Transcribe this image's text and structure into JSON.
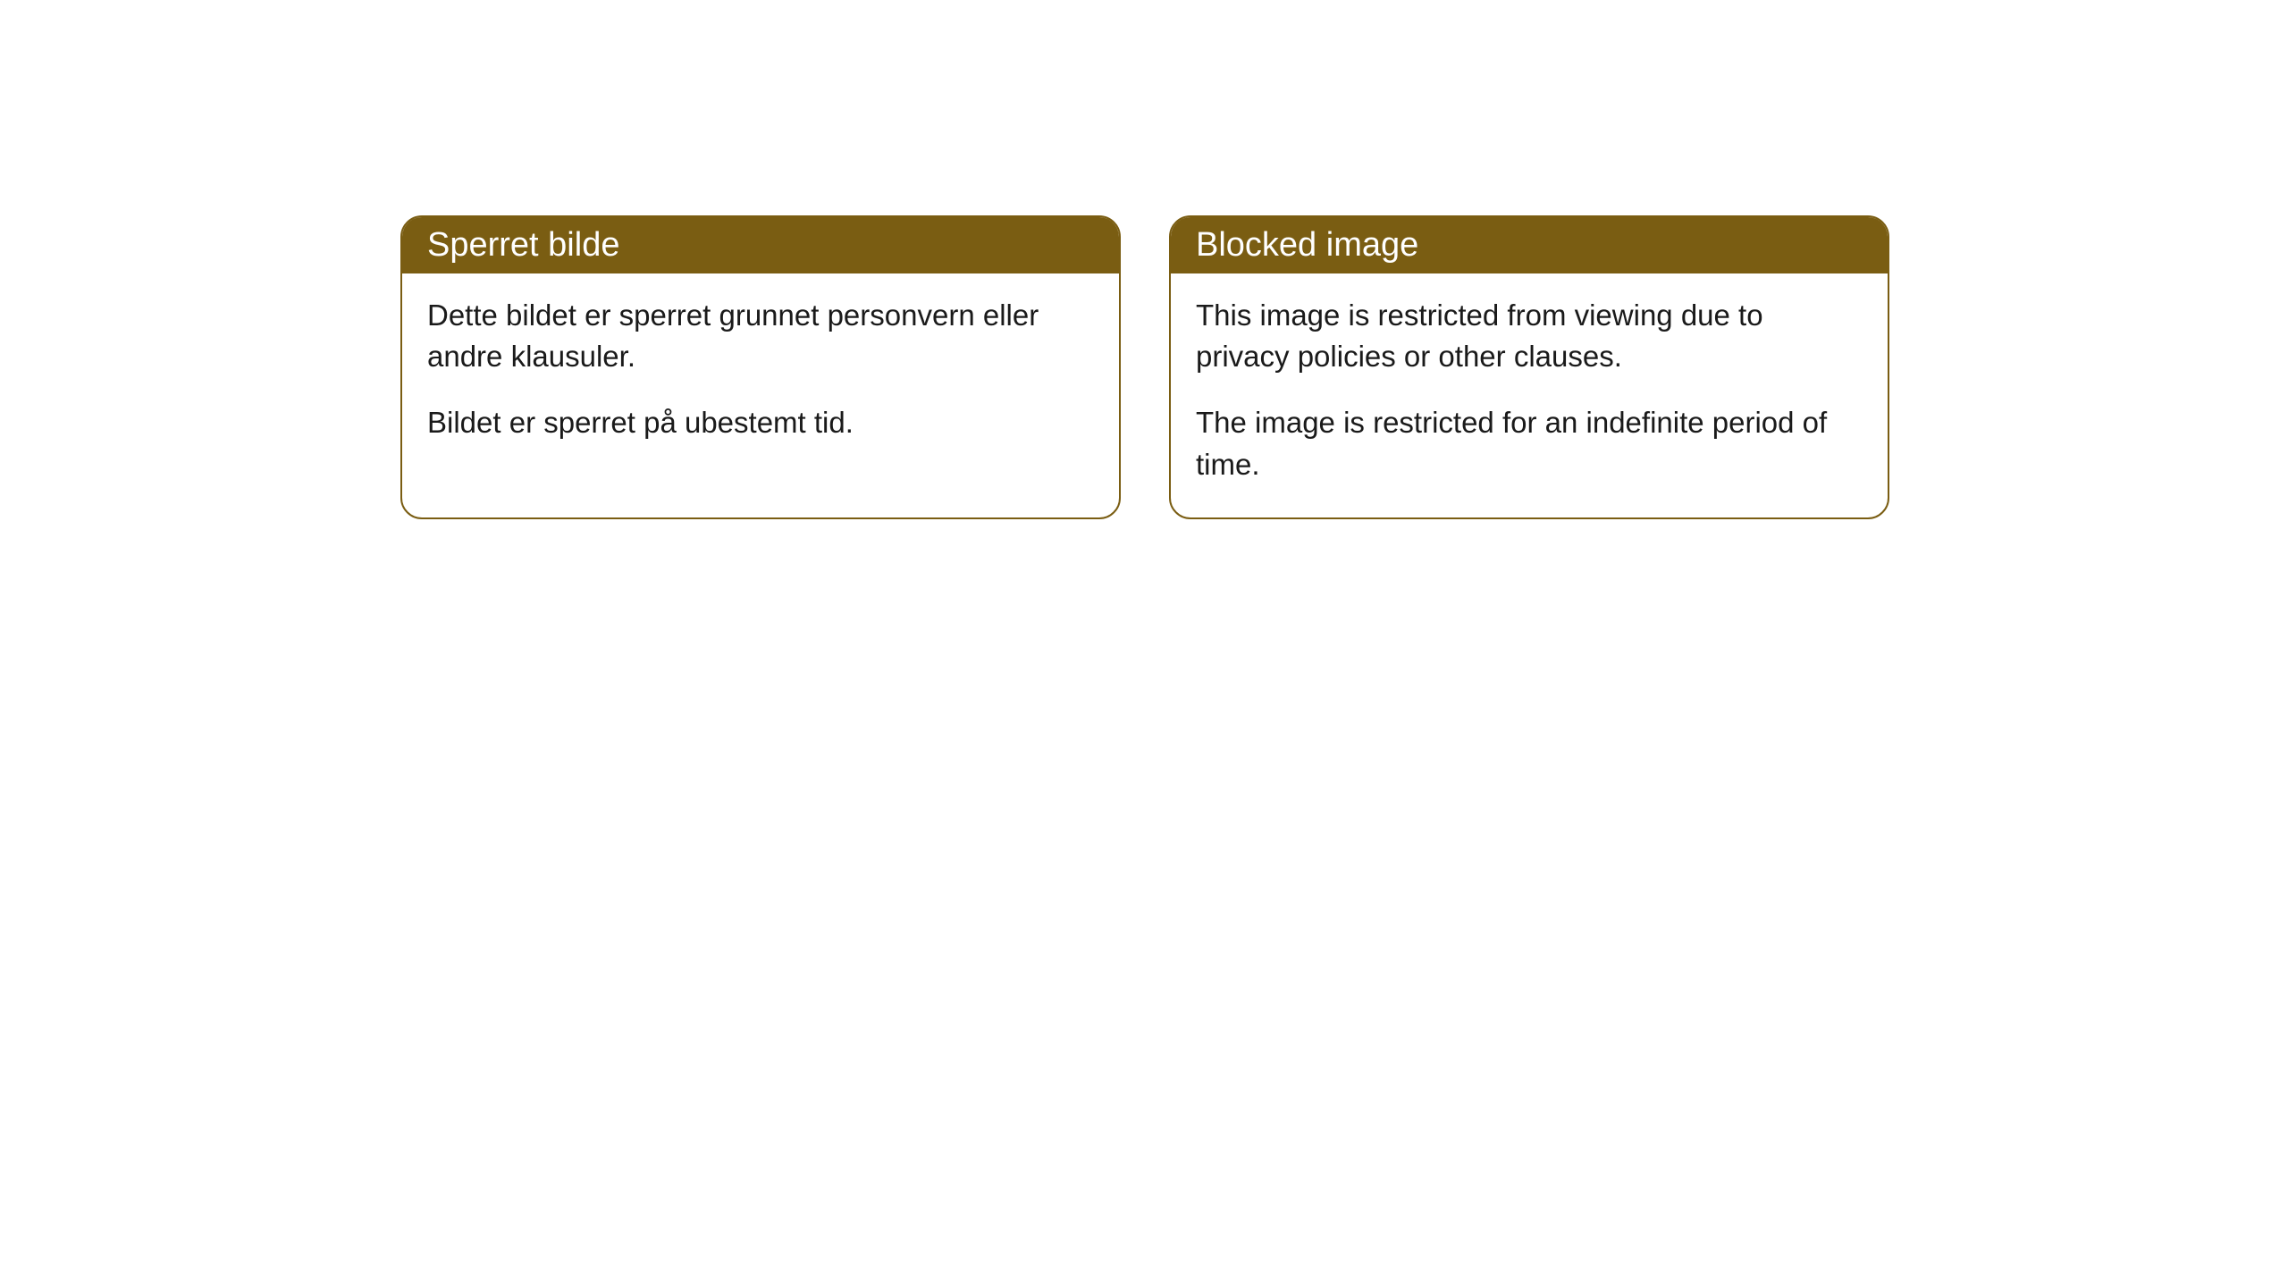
{
  "cards": [
    {
      "title": "Sperret bilde",
      "paragraph1": "Dette bildet er sperret grunnet personvern eller andre klausuler.",
      "paragraph2": "Bildet er sperret på ubestemt tid."
    },
    {
      "title": "Blocked image",
      "paragraph1": "This image is restricted from viewing due to privacy policies or other clauses.",
      "paragraph2": "The image is restricted for an indefinite period of time."
    }
  ],
  "style": {
    "header_bg": "#7a5d12",
    "header_fg": "#ffffff",
    "border_color": "#7a5d12",
    "body_bg": "#ffffff",
    "body_fg": "#1a1a1a",
    "border_radius": 24,
    "title_fontsize": 38,
    "body_fontsize": 33
  }
}
